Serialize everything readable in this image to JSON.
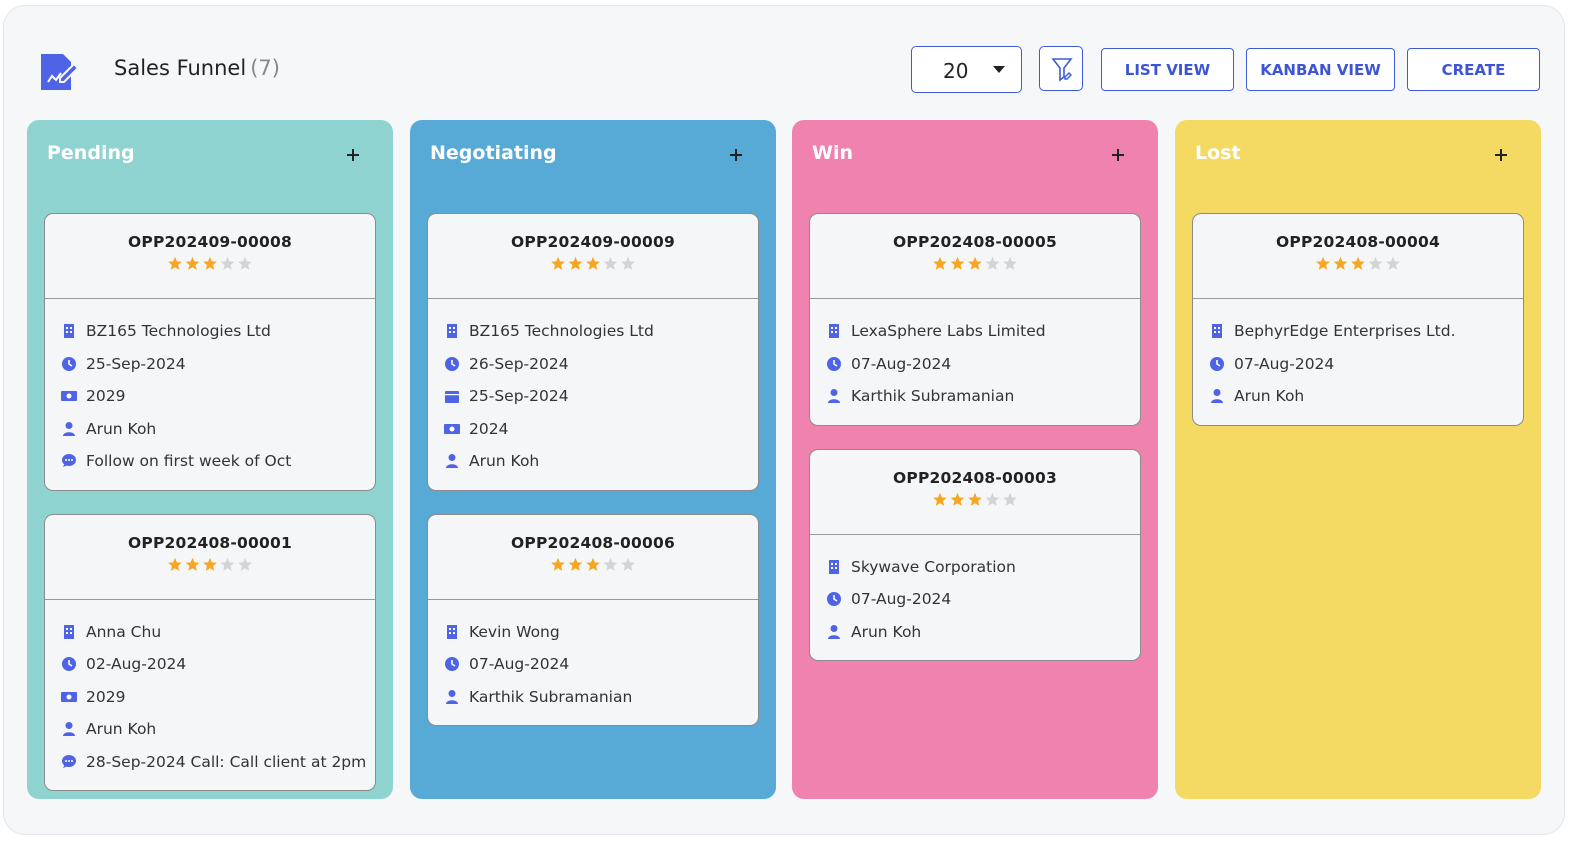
{
  "header": {
    "title": "Sales Funnel",
    "count": "(7)",
    "page_size": "20",
    "buttons": [
      "LIST VIEW",
      "KANBAN VIEW",
      "CREATE"
    ]
  },
  "columns": [
    {
      "name": "Pending",
      "color": "#8ed3cf",
      "cards": [
        {
          "id": "OPP202409-00008",
          "rating": 3,
          "fields": [
            {
              "icon": "building",
              "text": "BZ165 Technologies Ltd"
            },
            {
              "icon": "clock",
              "text": "25-Sep-2024"
            },
            {
              "icon": "money",
              "text": "2029"
            },
            {
              "icon": "user",
              "text": "Arun Koh"
            },
            {
              "icon": "comment",
              "text": "Follow on first week of Oct"
            }
          ]
        },
        {
          "id": "OPP202408-00001",
          "rating": 3,
          "fields": [
            {
              "icon": "building",
              "text": "Anna Chu"
            },
            {
              "icon": "clock",
              "text": "02-Aug-2024"
            },
            {
              "icon": "money",
              "text": "2029"
            },
            {
              "icon": "user",
              "text": "Arun Koh"
            },
            {
              "icon": "comment",
              "text": "28-Sep-2024 Call: Call client at 2pm"
            }
          ]
        }
      ]
    },
    {
      "name": "Negotiating",
      "color": "#58aad6",
      "cards": [
        {
          "id": "OPP202409-00009",
          "rating": 3,
          "fields": [
            {
              "icon": "building",
              "text": "BZ165 Technologies Ltd"
            },
            {
              "icon": "clock",
              "text": "26-Sep-2024"
            },
            {
              "icon": "calendar",
              "text": "25-Sep-2024"
            },
            {
              "icon": "money",
              "text": "2024"
            },
            {
              "icon": "user",
              "text": "Arun Koh"
            }
          ]
        },
        {
          "id": "OPP202408-00006",
          "rating": 3,
          "fields": [
            {
              "icon": "building",
              "text": "Kevin Wong"
            },
            {
              "icon": "clock",
              "text": "07-Aug-2024"
            },
            {
              "icon": "user",
              "text": "Karthik Subramanian"
            }
          ]
        }
      ]
    },
    {
      "name": "Win",
      "color": "#ef82ae",
      "cards": [
        {
          "id": "OPP202408-00005",
          "rating": 3,
          "fields": [
            {
              "icon": "building",
              "text": "LexaSphere Labs Limited"
            },
            {
              "icon": "clock",
              "text": "07-Aug-2024"
            },
            {
              "icon": "user",
              "text": "Karthik Subramanian"
            }
          ]
        },
        {
          "id": "OPP202408-00003",
          "rating": 3,
          "fields": [
            {
              "icon": "building",
              "text": "Skywave Corporation"
            },
            {
              "icon": "clock",
              "text": "07-Aug-2024"
            },
            {
              "icon": "user",
              "text": "Arun Koh"
            }
          ]
        }
      ]
    },
    {
      "name": "Lost",
      "color": "#f4da62",
      "cards": [
        {
          "id": "OPP202408-00004",
          "rating": 3,
          "fields": [
            {
              "icon": "building",
              "text": "BephyrEdge Enterprises Ltd."
            },
            {
              "icon": "clock",
              "text": "07-Aug-2024"
            },
            {
              "icon": "user",
              "text": "Arun Koh"
            }
          ]
        }
      ]
    }
  ]
}
